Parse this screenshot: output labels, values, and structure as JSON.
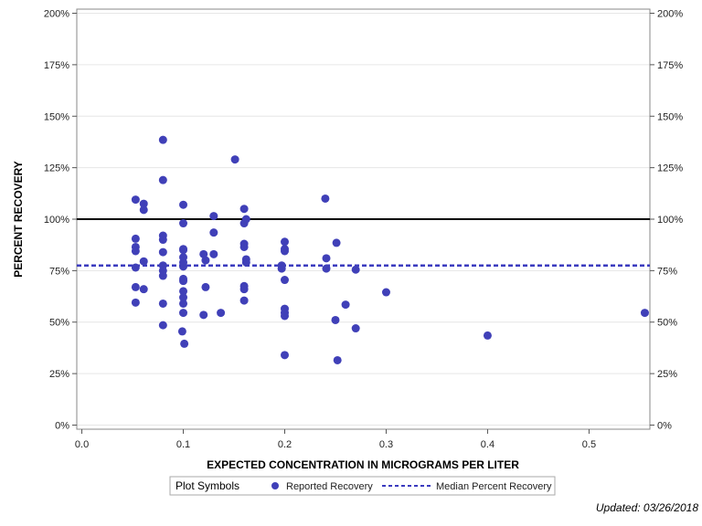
{
  "chart_data": {
    "type": "scatter",
    "xlabel": "EXPECTED CONCENTRATION IN MICROGRAMS PER LITER",
    "ylabel": "PERCENT RECOVERY",
    "xlim": [
      -0.005,
      0.56
    ],
    "ylim": [
      -2,
      202
    ],
    "x_ticks": [
      0.0,
      0.1,
      0.2,
      0.3,
      0.4,
      0.5
    ],
    "x_tick_labels": [
      "0.0",
      "0.1",
      "0.2",
      "0.3",
      "0.4",
      "0.5"
    ],
    "y_ticks": [
      0,
      25,
      50,
      75,
      100,
      125,
      150,
      175,
      200
    ],
    "y_tick_labels": [
      "0%",
      "25%",
      "50%",
      "75%",
      "100%",
      "125%",
      "150%",
      "175%",
      "200%"
    ],
    "grid": true,
    "reference_line": {
      "y": 100,
      "color": "#000000"
    },
    "median_line": {
      "y": 77.5,
      "name": "Median Percent Recovery",
      "color": "#3b3bbf"
    },
    "series": [
      {
        "name": "Reported Recovery",
        "color": "#4040b8",
        "points": [
          {
            "x": 0.053,
            "y": 109.5
          },
          {
            "x": 0.053,
            "y": 90.5
          },
          {
            "x": 0.053,
            "y": 86.5
          },
          {
            "x": 0.053,
            "y": 84.5
          },
          {
            "x": 0.053,
            "y": 76.5
          },
          {
            "x": 0.053,
            "y": 67
          },
          {
            "x": 0.053,
            "y": 59.5
          },
          {
            "x": 0.061,
            "y": 107.5
          },
          {
            "x": 0.061,
            "y": 104.5
          },
          {
            "x": 0.061,
            "y": 79.5
          },
          {
            "x": 0.061,
            "y": 66
          },
          {
            "x": 0.08,
            "y": 138.5
          },
          {
            "x": 0.08,
            "y": 119
          },
          {
            "x": 0.08,
            "y": 92
          },
          {
            "x": 0.08,
            "y": 90
          },
          {
            "x": 0.08,
            "y": 84
          },
          {
            "x": 0.08,
            "y": 77.5
          },
          {
            "x": 0.08,
            "y": 75
          },
          {
            "x": 0.08,
            "y": 72.5
          },
          {
            "x": 0.08,
            "y": 59
          },
          {
            "x": 0.08,
            "y": 48.5
          },
          {
            "x": 0.1,
            "y": 107
          },
          {
            "x": 0.1,
            "y": 98
          },
          {
            "x": 0.1,
            "y": 85.5
          },
          {
            "x": 0.1,
            "y": 85
          },
          {
            "x": 0.1,
            "y": 81.5
          },
          {
            "x": 0.1,
            "y": 79
          },
          {
            "x": 0.1,
            "y": 77
          },
          {
            "x": 0.1,
            "y": 71
          },
          {
            "x": 0.1,
            "y": 70
          },
          {
            "x": 0.1,
            "y": 65
          },
          {
            "x": 0.1,
            "y": 62
          },
          {
            "x": 0.1,
            "y": 59
          },
          {
            "x": 0.1,
            "y": 54.5
          },
          {
            "x": 0.099,
            "y": 45.5
          },
          {
            "x": 0.101,
            "y": 39.5
          },
          {
            "x": 0.12,
            "y": 83
          },
          {
            "x": 0.122,
            "y": 80
          },
          {
            "x": 0.122,
            "y": 67
          },
          {
            "x": 0.12,
            "y": 53.5
          },
          {
            "x": 0.13,
            "y": 101.5
          },
          {
            "x": 0.13,
            "y": 93.5
          },
          {
            "x": 0.13,
            "y": 83
          },
          {
            "x": 0.137,
            "y": 54.5
          },
          {
            "x": 0.151,
            "y": 129
          },
          {
            "x": 0.16,
            "y": 105
          },
          {
            "x": 0.16,
            "y": 98
          },
          {
            "x": 0.162,
            "y": 100
          },
          {
            "x": 0.16,
            "y": 88
          },
          {
            "x": 0.16,
            "y": 86.5
          },
          {
            "x": 0.162,
            "y": 80.5
          },
          {
            "x": 0.162,
            "y": 79
          },
          {
            "x": 0.16,
            "y": 67.5
          },
          {
            "x": 0.16,
            "y": 66
          },
          {
            "x": 0.16,
            "y": 60.5
          },
          {
            "x": 0.197,
            "y": 76
          },
          {
            "x": 0.197,
            "y": 77.5
          },
          {
            "x": 0.2,
            "y": 89
          },
          {
            "x": 0.2,
            "y": 85.5
          },
          {
            "x": 0.2,
            "y": 84.5
          },
          {
            "x": 0.2,
            "y": 70.5
          },
          {
            "x": 0.2,
            "y": 56.5
          },
          {
            "x": 0.2,
            "y": 54.5
          },
          {
            "x": 0.2,
            "y": 53
          },
          {
            "x": 0.2,
            "y": 34
          },
          {
            "x": 0.24,
            "y": 110
          },
          {
            "x": 0.241,
            "y": 81
          },
          {
            "x": 0.241,
            "y": 76
          },
          {
            "x": 0.251,
            "y": 88.5
          },
          {
            "x": 0.25,
            "y": 51
          },
          {
            "x": 0.252,
            "y": 31.5
          },
          {
            "x": 0.26,
            "y": 58.5
          },
          {
            "x": 0.27,
            "y": 75.5
          },
          {
            "x": 0.27,
            "y": 47
          },
          {
            "x": 0.3,
            "y": 64.5
          },
          {
            "x": 0.4,
            "y": 43.5
          },
          {
            "x": 0.555,
            "y": 54.5
          }
        ]
      }
    ],
    "legend": {
      "title": "Plot Symbols",
      "entries": [
        "Reported Recovery",
        "Median Percent Recovery"
      ]
    }
  },
  "footnote": "Updated: 03/26/2018"
}
